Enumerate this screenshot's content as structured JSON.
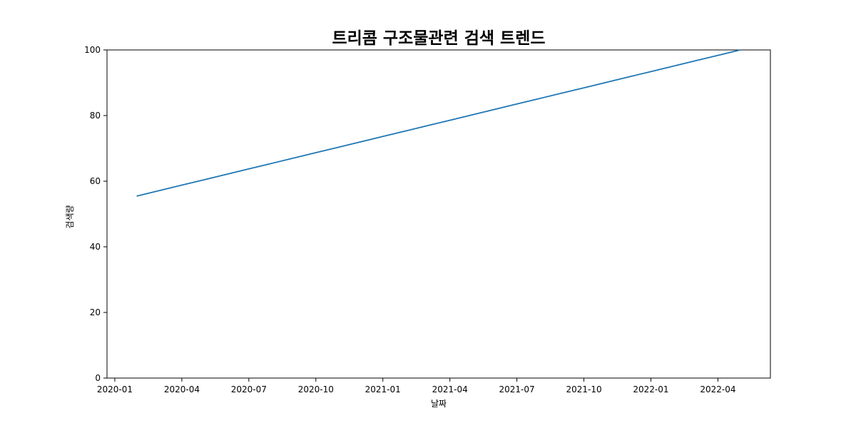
{
  "figure": {
    "background": "#ffffff"
  },
  "chart_data": {
    "type": "line",
    "title": "트리콤 구조물관련 검색 트렌드",
    "xlabel": "날짜",
    "ylabel": "검색량",
    "grid": false,
    "legend": null,
    "line_color": "#1f77b4",
    "xlim": [
      -0.35,
      29.35
    ],
    "ylim": [
      0,
      100
    ],
    "yticks": [
      0,
      20,
      40,
      60,
      80,
      100
    ],
    "xtick_positions": [
      0,
      3,
      6,
      9,
      12,
      15,
      18,
      21,
      24,
      27
    ],
    "xtick_labels": [
      "2020-01",
      "2020-04",
      "2020-07",
      "2020-10",
      "2021-01",
      "2021-04",
      "2021-07",
      "2021-10",
      "2022-01",
      "2022-04"
    ],
    "x_dates": [
      "2020-02",
      "2020-03",
      "2020-04",
      "2020-05",
      "2020-06",
      "2020-07",
      "2020-08",
      "2020-09",
      "2020-10",
      "2020-11",
      "2020-12",
      "2021-01",
      "2021-02",
      "2021-03",
      "2021-04",
      "2021-05",
      "2021-06",
      "2021-07",
      "2021-08",
      "2021-09",
      "2021-10",
      "2021-11",
      "2021-12",
      "2022-01",
      "2022-02",
      "2022-03",
      "2022-04",
      "2022-05"
    ],
    "x_index": [
      1,
      2,
      3,
      4,
      5,
      6,
      7,
      8,
      9,
      10,
      11,
      12,
      13,
      14,
      15,
      16,
      17,
      18,
      19,
      20,
      21,
      22,
      23,
      24,
      25,
      26,
      27,
      28
    ],
    "values": [
      55.5,
      57.15,
      58.8,
      60.44,
      62.09,
      63.74,
      65.39,
      67.04,
      68.69,
      70.33,
      71.98,
      73.63,
      75.28,
      76.93,
      78.57,
      80.22,
      81.87,
      83.52,
      85.17,
      86.81,
      88.46,
      90.11,
      91.76,
      93.41,
      95.06,
      96.7,
      98.35,
      100.0
    ]
  }
}
